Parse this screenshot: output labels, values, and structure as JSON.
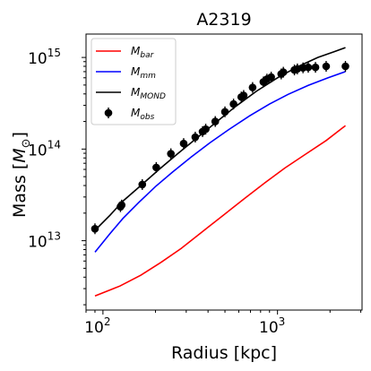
{
  "chart_data": {
    "type": "line",
    "title": "A2319",
    "xlabel": "Radius [kpc]",
    "ylabel": "Mass [M_⊙]",
    "xscale": "log",
    "yscale": "log",
    "xlim": [
      80,
      3050
    ],
    "ylim": [
      1750000000000.0,
      1800000000000000.0
    ],
    "grid": false,
    "legend_position": "upper-left",
    "x_ticks": [
      {
        "value": 100,
        "base": "10",
        "exp": "2"
      },
      {
        "value": 1000,
        "base": "10",
        "exp": "3"
      }
    ],
    "y_ticks": [
      {
        "value": 10000000000000.0,
        "base": "10",
        "exp": "13"
      },
      {
        "value": 100000000000000.0,
        "base": "10",
        "exp": "14"
      },
      {
        "value": 1000000000000000.0,
        "base": "10",
        "exp": "15"
      }
    ],
    "series": [
      {
        "name": "M_bar",
        "label_main": "M",
        "label_sub": "bar",
        "kind": "line",
        "color": "#ff0000",
        "points": [
          [
            90,
            2500000000000.0
          ],
          [
            125,
            3200000000000.0
          ],
          [
            165,
            4200000000000.0
          ],
          [
            215,
            5800000000000.0
          ],
          [
            280,
            8200000000000.0
          ],
          [
            370,
            12500000000000.0
          ],
          [
            490,
            19000000000000.0
          ],
          [
            650,
            29000000000000.0
          ],
          [
            850,
            43000000000000.0
          ],
          [
            1100,
            62000000000000.0
          ],
          [
            1450,
            88000000000000.0
          ],
          [
            1900,
            124000000000000.0
          ],
          [
            2450,
            180000000000000.0
          ]
        ]
      },
      {
        "name": "M_mm",
        "label_main": "M",
        "label_sub": "mm",
        "kind": "line",
        "color": "#0000ff",
        "points": [
          [
            90,
            7500000000000.0
          ],
          [
            110,
            12000000000000.0
          ],
          [
            130,
            17500000000000.0
          ],
          [
            160,
            26000000000000.0
          ],
          [
            200,
            39000000000000.0
          ],
          [
            250,
            56000000000000.0
          ],
          [
            320,
            82000000000000.0
          ],
          [
            410,
            117000000000000.0
          ],
          [
            530,
            165000000000000.0
          ],
          [
            690,
            230000000000000.0
          ],
          [
            900,
            310000000000000.0
          ],
          [
            1150,
            395000000000000.0
          ],
          [
            1500,
            495000000000000.0
          ],
          [
            1950,
            600000000000000.0
          ],
          [
            2450,
            700000000000000.0
          ]
        ]
      },
      {
        "name": "M_MOND",
        "label_main": "M",
        "label_sub": "MOND",
        "kind": "line",
        "color": "#000000",
        "points": [
          [
            90,
            13000000000000.0
          ],
          [
            110,
            19000000000000.0
          ],
          [
            130,
            27000000000000.0
          ],
          [
            165,
            40000000000000.0
          ],
          [
            210,
            60000000000000.0
          ],
          [
            270,
            90000000000000.0
          ],
          [
            350,
            135000000000000.0
          ],
          [
            450,
            200000000000000.0
          ],
          [
            580,
            295000000000000.0
          ],
          [
            760,
            430000000000000.0
          ],
          [
            1000,
            600000000000000.0
          ],
          [
            1300,
            790000000000000.0
          ],
          [
            1700,
            1000000000000000.0
          ],
          [
            2100,
            1150000000000000.0
          ],
          [
            2450,
            1280000000000000.0
          ]
        ]
      },
      {
        "name": "M_obs",
        "label_main": "M",
        "label_sub": "obs",
        "kind": "errorbar",
        "color": "#000000",
        "points": [
          [
            90,
            13500000000000.0
          ],
          [
            126,
            23500000000000.0
          ],
          [
            128,
            24500000000000.0
          ],
          [
            168,
            41000000000000.0
          ],
          [
            202,
            63000000000000.0
          ],
          [
            245,
            89000000000000.0
          ],
          [
            290,
            115000000000000.0
          ],
          [
            338,
            135000000000000.0
          ],
          [
            372,
            155000000000000.0
          ],
          [
            388,
            165000000000000.0
          ],
          [
            440,
            200000000000000.0
          ],
          [
            500,
            255000000000000.0
          ],
          [
            560,
            310000000000000.0
          ],
          [
            620,
            370000000000000.0
          ],
          [
            640,
            385000000000000.0
          ],
          [
            720,
            470000000000000.0
          ],
          [
            830,
            540000000000000.0
          ],
          [
            870,
            580000000000000.0
          ],
          [
            920,
            610000000000000.0
          ],
          [
            1050,
            660000000000000.0
          ],
          [
            1080,
            690000000000000.0
          ],
          [
            1250,
            730000000000000.0
          ],
          [
            1300,
            750000000000000.0
          ],
          [
            1400,
            770000000000000.0
          ],
          [
            1500,
            780000000000000.0
          ],
          [
            1650,
            780000000000000.0
          ],
          [
            1900,
            800000000000000.0
          ],
          [
            2450,
            800000000000000.0
          ]
        ]
      }
    ]
  }
}
